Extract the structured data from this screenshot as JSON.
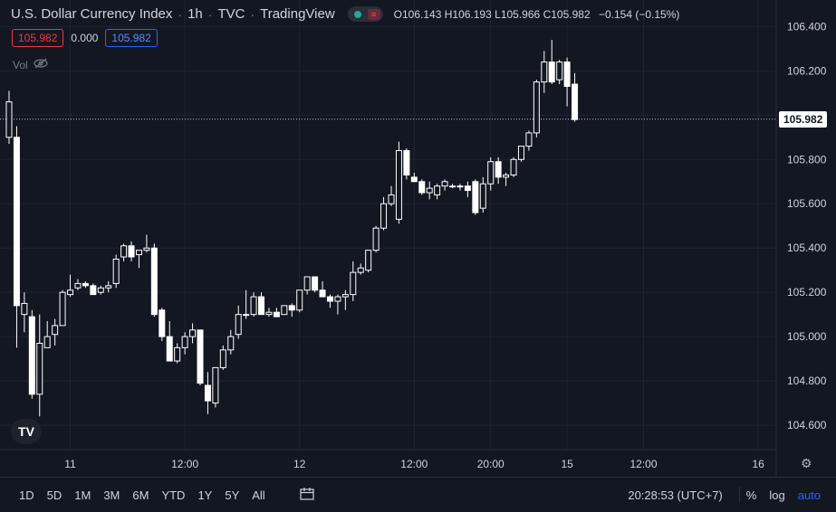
{
  "header": {
    "symbol": "U.S. Dollar Currency Index",
    "interval": "1h",
    "exchange": "TVC",
    "source": "TradingView",
    "ohlc": {
      "o_label": "O",
      "o": "106.143",
      "h_label": "H",
      "h": "106.193",
      "l_label": "L",
      "l": "105.966",
      "c_label": "C",
      "c": "105.982",
      "change": "−0.154 (−0.15%)"
    }
  },
  "badges": {
    "sell": "105.982",
    "spread": "0.000",
    "buy": "105.982"
  },
  "volume_label": "Vol",
  "logo": "TV",
  "last_price": "105.982",
  "bottom_bar": {
    "ranges": [
      "1D",
      "5D",
      "1M",
      "3M",
      "6M",
      "YTD",
      "1Y",
      "5Y",
      "All"
    ],
    "clock": "20:28:53 (UTC+7)",
    "percent": "%",
    "log": "log",
    "auto": "auto"
  },
  "colors": {
    "background": "#131722",
    "grid": "#1f2430",
    "candle": "#ffffff",
    "sell": "#f23645",
    "buy": "#2962ff",
    "auto": "#2962ff"
  },
  "chart_data": {
    "type": "candlestick",
    "title": "U.S. Dollar Currency Index · 1h · TVC",
    "y_ticks": [
      104.6,
      104.8,
      105.0,
      105.2,
      105.4,
      105.6,
      105.8,
      106.0,
      106.2,
      106.4
    ],
    "y_tick_labels": [
      "104.600",
      "104.800",
      "105.000",
      "105.200",
      "105.400",
      "105.600",
      "105.800",
      "106.000",
      "106.200",
      "106.400"
    ],
    "ylim": [
      104.49,
      106.52
    ],
    "x_ticks": [
      {
        "label": "11",
        "index": 8
      },
      {
        "label": "12:00",
        "index": 23
      },
      {
        "label": "12",
        "index": 38
      },
      {
        "label": "12:00",
        "index": 53
      },
      {
        "label": "20:00",
        "index": 63
      },
      {
        "label": "15",
        "index": 73
      },
      {
        "label": "12:00",
        "index": 83
      },
      {
        "label": "16",
        "index": 98
      }
    ],
    "grid": true,
    "last_price": 105.982,
    "candles": [
      {
        "o": 105.9,
        "h": 106.11,
        "l": 105.87,
        "c": 106.06
      },
      {
        "o": 105.9,
        "h": 105.95,
        "l": 104.95,
        "c": 105.14
      },
      {
        "o": 105.1,
        "h": 105.2,
        "l": 105.02,
        "c": 105.15
      },
      {
        "o": 105.09,
        "h": 105.12,
        "l": 104.72,
        "c": 104.74
      },
      {
        "o": 104.74,
        "h": 105.1,
        "l": 104.64,
        "c": 104.97
      },
      {
        "o": 104.95,
        "h": 105.07,
        "l": 104.95,
        "c": 105.0
      },
      {
        "o": 105.01,
        "h": 105.08,
        "l": 104.96,
        "c": 105.05
      },
      {
        "o": 105.05,
        "h": 105.21,
        "l": 105.05,
        "c": 105.2
      },
      {
        "o": 105.19,
        "h": 105.28,
        "l": 105.18,
        "c": 105.21
      },
      {
        "o": 105.22,
        "h": 105.26,
        "l": 105.21,
        "c": 105.24
      },
      {
        "o": 105.24,
        "h": 105.25,
        "l": 105.22,
        "c": 105.23
      },
      {
        "o": 105.23,
        "h": 105.24,
        "l": 105.19,
        "c": 105.19
      },
      {
        "o": 105.2,
        "h": 105.23,
        "l": 105.19,
        "c": 105.22
      },
      {
        "o": 105.22,
        "h": 105.25,
        "l": 105.2,
        "c": 105.23
      },
      {
        "o": 105.24,
        "h": 105.37,
        "l": 105.22,
        "c": 105.35
      },
      {
        "o": 105.36,
        "h": 105.42,
        "l": 105.34,
        "c": 105.41
      },
      {
        "o": 105.41,
        "h": 105.43,
        "l": 105.34,
        "c": 105.36
      },
      {
        "o": 105.37,
        "h": 105.39,
        "l": 105.31,
        "c": 105.39
      },
      {
        "o": 105.39,
        "h": 105.46,
        "l": 105.38,
        "c": 105.4
      },
      {
        "o": 105.4,
        "h": 105.42,
        "l": 105.09,
        "c": 105.1
      },
      {
        "o": 105.12,
        "h": 105.13,
        "l": 104.98,
        "c": 105.0
      },
      {
        "o": 105.0,
        "h": 105.07,
        "l": 104.89,
        "c": 104.89
      },
      {
        "o": 104.89,
        "h": 104.97,
        "l": 104.88,
        "c": 104.95
      },
      {
        "o": 104.95,
        "h": 105.02,
        "l": 104.92,
        "c": 105.0
      },
      {
        "o": 105.0,
        "h": 105.06,
        "l": 104.97,
        "c": 105.03
      },
      {
        "o": 105.03,
        "h": 105.03,
        "l": 104.78,
        "c": 104.79
      },
      {
        "o": 104.78,
        "h": 104.84,
        "l": 104.65,
        "c": 104.71
      },
      {
        "o": 104.7,
        "h": 104.85,
        "l": 104.68,
        "c": 104.86
      },
      {
        "o": 104.86,
        "h": 104.96,
        "l": 104.85,
        "c": 104.94
      },
      {
        "o": 104.94,
        "h": 105.03,
        "l": 104.92,
        "c": 105.0
      },
      {
        "o": 105.01,
        "h": 105.14,
        "l": 104.99,
        "c": 105.1
      },
      {
        "o": 105.1,
        "h": 105.21,
        "l": 105.08,
        "c": 105.1
      },
      {
        "o": 105.1,
        "h": 105.2,
        "l": 105.09,
        "c": 105.18
      },
      {
        "o": 105.18,
        "h": 105.2,
        "l": 105.1,
        "c": 105.1
      },
      {
        "o": 105.1,
        "h": 105.13,
        "l": 105.09,
        "c": 105.11
      },
      {
        "o": 105.11,
        "h": 105.13,
        "l": 105.09,
        "c": 105.09
      },
      {
        "o": 105.1,
        "h": 105.14,
        "l": 105.1,
        "c": 105.14
      },
      {
        "o": 105.14,
        "h": 105.15,
        "l": 105.09,
        "c": 105.12
      },
      {
        "o": 105.12,
        "h": 105.21,
        "l": 105.11,
        "c": 105.21
      },
      {
        "o": 105.21,
        "h": 105.27,
        "l": 105.19,
        "c": 105.27
      },
      {
        "o": 105.27,
        "h": 105.27,
        "l": 105.2,
        "c": 105.21
      },
      {
        "o": 105.21,
        "h": 105.25,
        "l": 105.18,
        "c": 105.18
      },
      {
        "o": 105.18,
        "h": 105.19,
        "l": 105.13,
        "c": 105.16
      },
      {
        "o": 105.16,
        "h": 105.19,
        "l": 105.1,
        "c": 105.18
      },
      {
        "o": 105.18,
        "h": 105.21,
        "l": 105.12,
        "c": 105.19
      },
      {
        "o": 105.19,
        "h": 105.34,
        "l": 105.16,
        "c": 105.29
      },
      {
        "o": 105.29,
        "h": 105.33,
        "l": 105.28,
        "c": 105.31
      },
      {
        "o": 105.3,
        "h": 105.39,
        "l": 105.29,
        "c": 105.39
      },
      {
        "o": 105.39,
        "h": 105.5,
        "l": 105.38,
        "c": 105.49
      },
      {
        "o": 105.49,
        "h": 105.63,
        "l": 105.48,
        "c": 105.6
      },
      {
        "o": 105.6,
        "h": 105.68,
        "l": 105.59,
        "c": 105.64
      },
      {
        "o": 105.53,
        "h": 105.88,
        "l": 105.51,
        "c": 105.84
      },
      {
        "o": 105.84,
        "h": 105.85,
        "l": 105.71,
        "c": 105.73
      },
      {
        "o": 105.72,
        "h": 105.74,
        "l": 105.7,
        "c": 105.7
      },
      {
        "o": 105.7,
        "h": 105.71,
        "l": 105.64,
        "c": 105.65
      },
      {
        "o": 105.65,
        "h": 105.7,
        "l": 105.62,
        "c": 105.67
      },
      {
        "o": 105.64,
        "h": 105.69,
        "l": 105.62,
        "c": 105.68
      },
      {
        "o": 105.68,
        "h": 105.71,
        "l": 105.66,
        "c": 105.7
      },
      {
        "o": 105.68,
        "h": 105.69,
        "l": 105.67,
        "c": 105.68
      },
      {
        "o": 105.68,
        "h": 105.69,
        "l": 105.66,
        "c": 105.68
      },
      {
        "o": 105.68,
        "h": 105.7,
        "l": 105.63,
        "c": 105.66
      },
      {
        "o": 105.7,
        "h": 105.71,
        "l": 105.55,
        "c": 105.56
      },
      {
        "o": 105.58,
        "h": 105.72,
        "l": 105.56,
        "c": 105.69
      },
      {
        "o": 105.69,
        "h": 105.81,
        "l": 105.66,
        "c": 105.79
      },
      {
        "o": 105.79,
        "h": 105.81,
        "l": 105.69,
        "c": 105.72
      },
      {
        "o": 105.72,
        "h": 105.74,
        "l": 105.68,
        "c": 105.73
      },
      {
        "o": 105.73,
        "h": 105.81,
        "l": 105.72,
        "c": 105.8
      },
      {
        "o": 105.8,
        "h": 105.86,
        "l": 105.79,
        "c": 105.86
      },
      {
        "o": 105.86,
        "h": 105.93,
        "l": 105.84,
        "c": 105.92
      },
      {
        "o": 105.92,
        "h": 106.16,
        "l": 105.9,
        "c": 106.15
      },
      {
        "o": 106.15,
        "h": 106.29,
        "l": 106.1,
        "c": 106.24
      },
      {
        "o": 106.24,
        "h": 106.34,
        "l": 106.14,
        "c": 106.15
      },
      {
        "o": 106.16,
        "h": 106.25,
        "l": 106.14,
        "c": 106.24
      },
      {
        "o": 106.24,
        "h": 106.26,
        "l": 106.04,
        "c": 106.13
      },
      {
        "o": 106.14,
        "h": 106.19,
        "l": 105.97,
        "c": 105.98
      }
    ]
  }
}
